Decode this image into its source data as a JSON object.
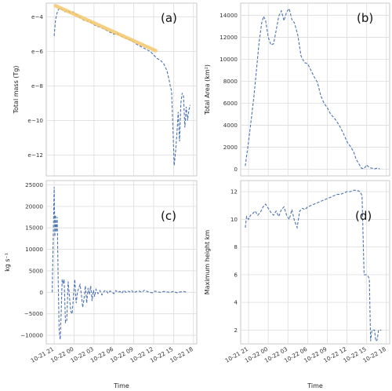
{
  "colors": {
    "series": "#4c72b0",
    "fit": "#f5c76a"
  },
  "chart_data": [
    {
      "panel": "(a)",
      "type": "line",
      "ylabel": "Total mass (Tg)",
      "xlabel": "",
      "y_scale": "ln",
      "ylim": [
        -13.2,
        -3.2
      ],
      "xlim": [
        -1.2,
        21.5
      ],
      "yticks": [
        {
          "v": -4,
          "label": "e−4"
        },
        {
          "v": -6,
          "label": "e−6"
        },
        {
          "v": -8,
          "label": "e−8"
        },
        {
          "v": -10,
          "label": "e−10"
        },
        {
          "v": -12,
          "label": "e−12"
        }
      ],
      "xtick_values": [
        0,
        3,
        6,
        9,
        12,
        15,
        18,
        21
      ],
      "grid": true,
      "series": [
        {
          "style": "dashed",
          "x": [
            0,
            0.2,
            0.4,
            0.6,
            0.8,
            1.0,
            1.3,
            1.6,
            2.0,
            2.4,
            2.8,
            3.2,
            3.6,
            4.0,
            4.5,
            5.0,
            5.5,
            6.0,
            6.5,
            7.0,
            7.5,
            8.0,
            8.5,
            9.0,
            9.5,
            10.0,
            10.5,
            11.0,
            11.5,
            12.0,
            12.5,
            13.0,
            13.5,
            14.0,
            14.5,
            15.0,
            15.5,
            16.0,
            16.5,
            17.0,
            17.3,
            17.5,
            17.7,
            17.9,
            18.1,
            18.3,
            18.5,
            18.7,
            18.9,
            19.1,
            19.3,
            19.5,
            19.7,
            19.9,
            20.1,
            20.3,
            20.5
          ],
          "y": [
            -5.1,
            -4.2,
            -3.8,
            -3.6,
            -3.5,
            -3.55,
            -3.6,
            -3.7,
            -3.62,
            -3.75,
            -3.7,
            -3.8,
            -3.95,
            -4.05,
            -4.2,
            -4.25,
            -4.3,
            -4.45,
            -4.55,
            -4.6,
            -4.7,
            -4.8,
            -4.9,
            -5.0,
            -4.95,
            -5.1,
            -5.2,
            -5.25,
            -5.35,
            -5.45,
            -5.6,
            -5.7,
            -5.8,
            -5.9,
            -6.0,
            -6.2,
            -6.4,
            -6.5,
            -6.7,
            -7.1,
            -7.6,
            -8.0,
            -8.3,
            -10.5,
            -12.6,
            -11.8,
            -10.8,
            -9.5,
            -11.2,
            -9.0,
            -8.4,
            -8.6,
            -10.4,
            -9.2,
            -10.0,
            -9.4,
            -9.1
          ]
        },
        {
          "name": "",
          "style": "fit",
          "x": [
            0.2,
            15.3
          ],
          "y": [
            -3.35,
            -5.95
          ]
        }
      ]
    },
    {
      "panel": "(b)",
      "type": "line",
      "ylabel": "Total Area (km²)",
      "xlabel": "",
      "ylim": [
        -600,
        15100
      ],
      "xlim": [
        -1.2,
        21.5
      ],
      "yticks": [
        {
          "v": 0,
          "label": "0"
        },
        {
          "v": 2000,
          "label": "2000"
        },
        {
          "v": 4000,
          "label": "4000"
        },
        {
          "v": 6000,
          "label": "6000"
        },
        {
          "v": 8000,
          "label": "8000"
        },
        {
          "v": 10000,
          "label": "10000"
        },
        {
          "v": 12000,
          "label": "12000"
        },
        {
          "v": 14000,
          "label": "14000"
        }
      ],
      "xtick_values": [
        0,
        3,
        6,
        9,
        12,
        15,
        18,
        21
      ],
      "grid": true,
      "series": [
        {
          "style": "dashed",
          "x": [
            -0.5,
            -0.3,
            0,
            0.4,
            0.8,
            1.2,
            1.6,
            2.0,
            2.3,
            2.6,
            3.0,
            3.4,
            3.8,
            4.2,
            4.6,
            5.0,
            5.4,
            5.8,
            6.2,
            6.6,
            7.0,
            7.5,
            8.0,
            8.5,
            9.0,
            9.5,
            10.0,
            10.5,
            11.0,
            11.5,
            12.0,
            12.5,
            13.0,
            13.5,
            14.0,
            14.5,
            15.0,
            15.5,
            16.0,
            16.4,
            16.8,
            17.2,
            17.6,
            18.0,
            18.4,
            18.8,
            19.2,
            19.6,
            20.0
          ],
          "y": [
            300,
            1200,
            2500,
            4500,
            6500,
            9000,
            11500,
            13300,
            13900,
            13500,
            12000,
            11300,
            11400,
            12600,
            13900,
            14400,
            13500,
            14300,
            14600,
            13600,
            13300,
            12200,
            10300,
            9700,
            9600,
            9000,
            8400,
            7900,
            6700,
            6000,
            5600,
            5000,
            4700,
            4300,
            3800,
            3200,
            2500,
            2100,
            1600,
            900,
            500,
            100,
            50,
            400,
            150,
            100,
            50,
            100,
            50
          ]
        }
      ]
    },
    {
      "panel": "(c)",
      "type": "line",
      "ylabel": "kg s⁻¹",
      "xlabel": "Time",
      "ylim": [
        -12000,
        26000
      ],
      "xlim": [
        -1.2,
        21.5
      ],
      "yticks": [
        {
          "v": -10000,
          "label": "−10000"
        },
        {
          "v": -5000,
          "label": "−5000"
        },
        {
          "v": 0,
          "label": "0"
        },
        {
          "v": 5000,
          "label": "5000"
        },
        {
          "v": 10000,
          "label": "10000"
        },
        {
          "v": 15000,
          "label": "15000"
        },
        {
          "v": 20000,
          "label": "20000"
        },
        {
          "v": 25000,
          "label": "25000"
        }
      ],
      "xticks": [
        {
          "v": 0,
          "label": "10-21 21"
        },
        {
          "v": 3,
          "label": "10-22 00"
        },
        {
          "v": 6,
          "label": "10-22 03"
        },
        {
          "v": 9,
          "label": "10-22 06"
        },
        {
          "v": 12,
          "label": "10-22 09"
        },
        {
          "v": 15,
          "label": "10-22 12"
        },
        {
          "v": 18,
          "label": "10-22 15"
        },
        {
          "v": 21,
          "label": "10-22 18"
        }
      ],
      "grid": true,
      "series": [
        {
          "style": "dashed",
          "x": [
            -0.3,
            0,
            0.1,
            0.2,
            0.3,
            0.45,
            0.6,
            0.75,
            0.9,
            1.05,
            1.2,
            1.35,
            1.5,
            1.7,
            1.9,
            2.1,
            2.3,
            2.5,
            2.7,
            2.9,
            3.1,
            3.3,
            3.5,
            3.7,
            3.9,
            4.1,
            4.3,
            4.5,
            4.7,
            4.9,
            5.1,
            5.3,
            5.5,
            5.7,
            5.9,
            6.1,
            6.3,
            6.6,
            6.9,
            7.2,
            7.5,
            7.8,
            8.1,
            8.4,
            8.7,
            9.0,
            9.3,
            9.6,
            9.9,
            10.2,
            10.5,
            10.8,
            11.1,
            11.4,
            11.7,
            12.0,
            12.4,
            12.8,
            13.2,
            13.6,
            14.0,
            14.4,
            14.8,
            15.2,
            15.6,
            16.0,
            16.5,
            17.0,
            17.5,
            18.0,
            18.5,
            19.0,
            19.5,
            20.0
          ],
          "y": [
            0,
            24500,
            13000,
            18000,
            14000,
            17500,
            3000,
            -9000,
            -11000,
            -5000,
            3000,
            2000,
            3000,
            -7000,
            -6500,
            2500,
            -1000,
            -4500,
            -5000,
            -1000,
            3000,
            -2500,
            0,
            1000,
            1800,
            -500,
            -3500,
            -1500,
            1500,
            -2500,
            1000,
            -500,
            1500,
            -2000,
            500,
            -1000,
            700,
            -300,
            400,
            -600,
            200,
            500,
            -200,
            300,
            100,
            -300,
            400,
            0,
            200,
            -200,
            500,
            0,
            300,
            100,
            400,
            -100,
            200,
            300,
            0,
            500,
            200,
            0,
            -100,
            300,
            100,
            0,
            200,
            100,
            0,
            200,
            -100,
            100,
            200,
            0
          ]
        }
      ]
    },
    {
      "panel": "(d)",
      "type": "line",
      "ylabel": "Maximum height km",
      "xlabel": "Time",
      "ylim": [
        1.0,
        12.8
      ],
      "xlim": [
        -1.2,
        21.5
      ],
      "yticks": [
        {
          "v": 2,
          "label": "2"
        },
        {
          "v": 4,
          "label": "4"
        },
        {
          "v": 6,
          "label": "6"
        },
        {
          "v": 8,
          "label": "8"
        },
        {
          "v": 10,
          "label": "10"
        },
        {
          "v": 12,
          "label": "12"
        }
      ],
      "xticks": [
        {
          "v": 0,
          "label": "10-21 21"
        },
        {
          "v": 3,
          "label": "10-22 00"
        },
        {
          "v": 6,
          "label": "10-22 03"
        },
        {
          "v": 9,
          "label": "10-22 06"
        },
        {
          "v": 12,
          "label": "10-22 09"
        },
        {
          "v": 15,
          "label": "10-22 12"
        },
        {
          "v": 18,
          "label": "10-22 15"
        },
        {
          "v": 21,
          "label": "10-22 18"
        }
      ],
      "grid": true,
      "series": [
        {
          "style": "dashed",
          "x": [
            -0.5,
            -0.3,
            0,
            0.3,
            0.6,
            1.0,
            1.4,
            1.8,
            2.2,
            2.6,
            3.0,
            3.4,
            3.8,
            4.2,
            4.6,
            5.0,
            5.4,
            5.8,
            6.2,
            6.6,
            7.0,
            7.4,
            7.8,
            8.2,
            8.6,
            9.0,
            9.5,
            10.0,
            10.5,
            11.0,
            11.5,
            12.0,
            12.5,
            13.0,
            13.5,
            14.0,
            14.5,
            15.0,
            15.5,
            16.0,
            16.5,
            17.0,
            17.3,
            17.6,
            17.9,
            18.2,
            18.4,
            18.6,
            18.8,
            19.0,
            19.2,
            19.4,
            19.6,
            19.8,
            20.0,
            20.2
          ],
          "y": [
            9.4,
            10.2,
            10.0,
            10.3,
            10.4,
            10.6,
            10.3,
            10.5,
            10.9,
            11.1,
            10.8,
            10.5,
            10.3,
            10.6,
            10.2,
            10.7,
            10.9,
            10.3,
            10.0,
            10.7,
            9.9,
            9.4,
            10.6,
            10.8,
            10.7,
            10.9,
            11.0,
            11.1,
            11.2,
            11.3,
            11.4,
            11.5,
            11.6,
            11.7,
            11.8,
            11.8,
            11.9,
            12.0,
            12.0,
            12.1,
            12.1,
            12.0,
            11.7,
            6.0,
            6.0,
            5.9,
            5.7,
            1.2,
            2.0,
            2.0,
            2.0,
            1.2,
            1.3,
            2.0,
            2.0,
            2.0
          ]
        }
      ]
    }
  ]
}
